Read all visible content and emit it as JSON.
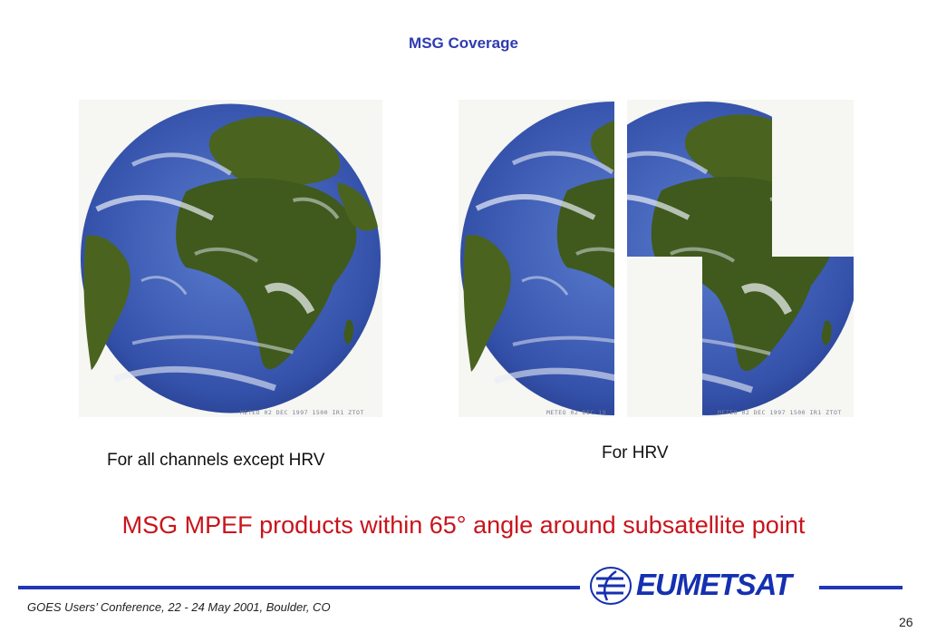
{
  "title": "MSG Coverage",
  "images": {
    "full_disk_stamp": "METEO 02 DEC 1997 1500 IR1 ZTOT",
    "hrv_left_stamp": "METEO 02 DEC 19",
    "hrv_right_stamp": "METEO 02 DEC 1997 1500 IR1 ZTOT"
  },
  "captions": {
    "left": "For all channels except HRV",
    "right": "For HRV"
  },
  "tagline": "MSG MPEF products within 65° angle around subsatellite point",
  "footer": {
    "conference": "GOES Users’ Conference, 22 - 24 May 2001, Boulder, CO",
    "page_number": "26",
    "logo_text": "EUMETSAT"
  },
  "colors": {
    "title": "#2f3bb0",
    "tagline": "#c8141c",
    "rule": "#2236b8",
    "ocean": "#3a5bb5",
    "land": "#3f5a1c"
  }
}
